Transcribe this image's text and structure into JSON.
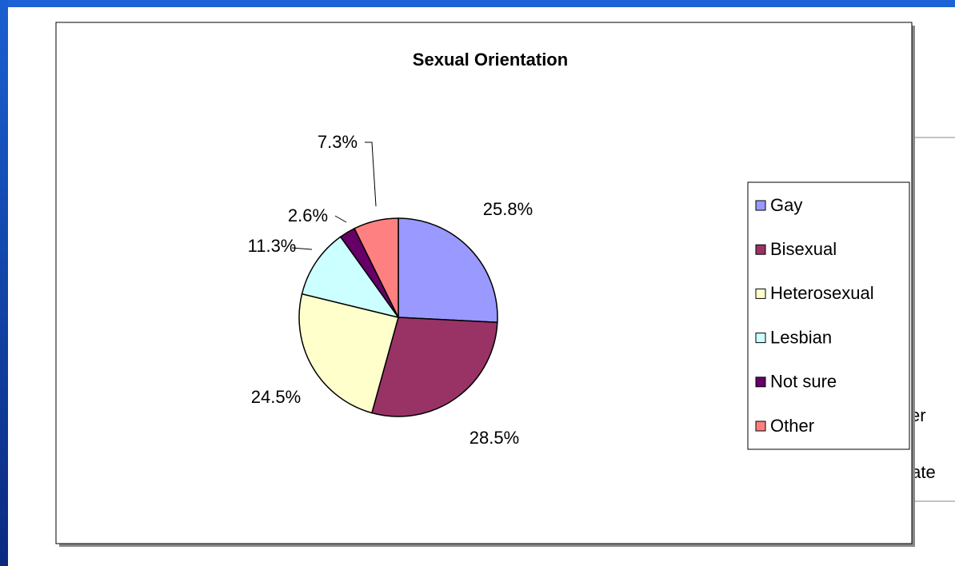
{
  "chart_data": {
    "type": "pie",
    "title": "Sexual Orientation",
    "categories": [
      "Gay",
      "Bisexual",
      "Heterosexual",
      "Lesbian",
      "Not sure",
      "Other"
    ],
    "values": [
      25.8,
      28.5,
      24.5,
      11.3,
      2.6,
      7.3
    ],
    "value_labels": [
      "25.8%",
      "28.5%",
      "24.5%",
      "11.3%",
      "2.6%",
      "7.3%"
    ],
    "colors": [
      "#9999ff",
      "#993366",
      "#ffffcc",
      "#ccffff",
      "#660066",
      "#ff8080"
    ],
    "legend": "right"
  },
  "background_text": [
    "er",
    "tate"
  ]
}
